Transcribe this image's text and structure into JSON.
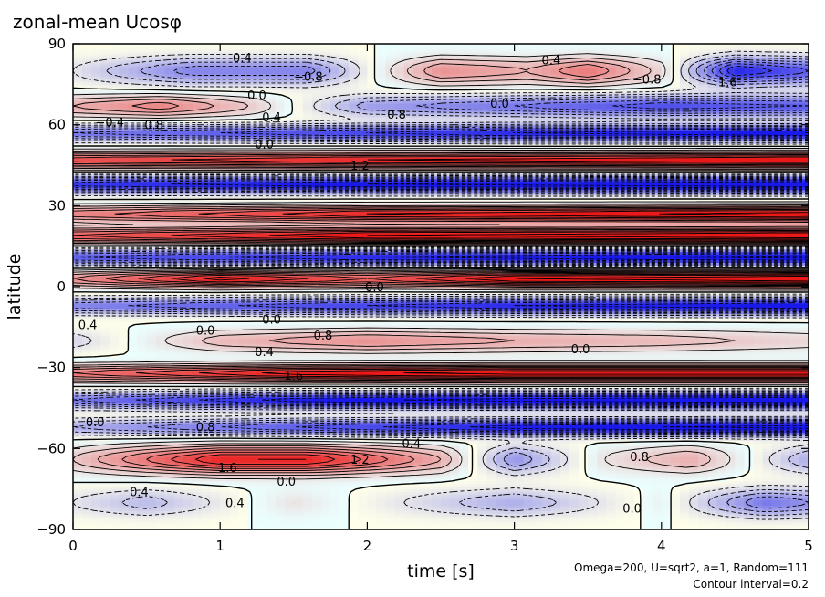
{
  "chart_data": {
    "type": "heatmap",
    "title": "zonal-mean Ucosφ",
    "xlabel": "time [s]",
    "ylabel": "latitude",
    "xlim": [
      0,
      5
    ],
    "ylim": [
      -90,
      90
    ],
    "x_ticks": [
      "0",
      "1",
      "2",
      "3",
      "4",
      "5"
    ],
    "y_ticks": [
      "−90",
      "−60",
      "−30",
      "0",
      "30",
      "60",
      "90"
    ],
    "annotation": "Omega=200, U=sqrt2, a=1, Random=111",
    "contour_interval_text": "Contour interval=0.2",
    "contour_interval": 0.2,
    "colors": {
      "positive": "#e81c1c",
      "negative": "#1c1ce8",
      "zero": "#ffffff",
      "contour": "#000000"
    },
    "grid": false,
    "contour_labels": [
      {
        "text": "0.4",
        "t": 1.15,
        "lat": 85
      },
      {
        "text": "−0.8",
        "t": 1.6,
        "lat": 78
      },
      {
        "text": "0.0",
        "t": 1.25,
        "lat": 71
      },
      {
        "text": "0.4",
        "t": 3.25,
        "lat": 84
      },
      {
        "text": "0.0",
        "t": 2.9,
        "lat": 68
      },
      {
        "text": "−0.8",
        "t": 3.9,
        "lat": 77
      },
      {
        "text": "0.4",
        "t": 1.35,
        "lat": 63
      },
      {
        "text": "0.8",
        "t": 0.55,
        "lat": 60
      },
      {
        "text": "−0.4",
        "t": 0.25,
        "lat": 61
      },
      {
        "text": "0.8",
        "t": 2.2,
        "lat": 64
      },
      {
        "text": "0.0",
        "t": 1.3,
        "lat": 53
      },
      {
        "text": "1.2",
        "t": 1.95,
        "lat": 45
      },
      {
        "text": "0.0",
        "t": 2.05,
        "lat": 0
      },
      {
        "text": "0.4",
        "t": 0.1,
        "lat": -14
      },
      {
        "text": "0.0",
        "t": 0.9,
        "lat": -16
      },
      {
        "text": "0.0",
        "t": 1.35,
        "lat": -12
      },
      {
        "text": "0.8",
        "t": 1.7,
        "lat": -18
      },
      {
        "text": "0.4",
        "t": 1.3,
        "lat": -24
      },
      {
        "text": "1.6",
        "t": 1.5,
        "lat": -33
      },
      {
        "text": "0.0",
        "t": 3.45,
        "lat": -23
      },
      {
        "text": "0.8",
        "t": 0.9,
        "lat": -52
      },
      {
        "text": "0.0",
        "t": 0.15,
        "lat": -50
      },
      {
        "text": "1.6",
        "t": 1.05,
        "lat": -67
      },
      {
        "text": "1.2",
        "t": 1.95,
        "lat": -64
      },
      {
        "text": "0.4",
        "t": 2.3,
        "lat": -58
      },
      {
        "text": "0.0",
        "t": 1.45,
        "lat": -72
      },
      {
        "text": "0.4",
        "t": 0.45,
        "lat": -76
      },
      {
        "text": "0.4",
        "t": 1.1,
        "lat": -80
      },
      {
        "text": "0.8",
        "t": 3.85,
        "lat": -63
      },
      {
        "text": "0.0",
        "t": 3.8,
        "lat": -82
      },
      {
        "text": "1.6",
        "t": 4.45,
        "lat": 76
      }
    ],
    "field_model": {
      "description": "zonal jets in latitude evolving in time",
      "jets": [
        {
          "lat": 80,
          "width": 5,
          "amp": [
            [
              0,
              -0.2
            ],
            [
              0.8,
              -0.9
            ],
            [
              1.6,
              -0.9
            ],
            [
              2.1,
              0.1
            ],
            [
              2.5,
              0.8
            ],
            [
              3.1,
              0.6
            ],
            [
              3.5,
              1.0
            ],
            [
              4.0,
              0.3
            ],
            [
              4.5,
              -1.6
            ],
            [
              5,
              -1.2
            ]
          ]
        },
        {
          "lat": 67,
          "width": 4,
          "amp": [
            [
              0,
              0.6
            ],
            [
              0.6,
              0.9
            ],
            [
              1.2,
              0.4
            ],
            [
              2.0,
              -0.7
            ],
            [
              3.0,
              -1.0
            ],
            [
              4.0,
              -1.3
            ],
            [
              5,
              -1.2
            ]
          ]
        },
        {
          "lat": 57,
          "width": 3,
          "amp": [
            [
              0,
              -1.0
            ],
            [
              1.5,
              -1.3
            ],
            [
              3.0,
              -1.6
            ],
            [
              5,
              -1.8
            ]
          ]
        },
        {
          "lat": 47,
          "width": 3,
          "amp": [
            [
              0,
              1.3
            ],
            [
              2.0,
              1.6
            ],
            [
              5,
              1.8
            ]
          ]
        },
        {
          "lat": 38,
          "width": 3,
          "amp": [
            [
              0,
              -1.5
            ],
            [
              2.0,
              -1.8
            ],
            [
              5,
              -2.0
            ]
          ]
        },
        {
          "lat": 27,
          "width": 3,
          "amp": [
            [
              0,
              0.9
            ],
            [
              2.0,
              1.6
            ],
            [
              5,
              1.9
            ]
          ]
        },
        {
          "lat": 19,
          "width": 3,
          "amp": [
            [
              0,
              1.2
            ],
            [
              2.0,
              1.8
            ],
            [
              5,
              2.0
            ]
          ]
        },
        {
          "lat": 11,
          "width": 3,
          "amp": [
            [
              0,
              -1.2
            ],
            [
              2.0,
              -1.6
            ],
            [
              5,
              -1.9
            ]
          ]
        },
        {
          "lat": 3,
          "width": 3,
          "amp": [
            [
              0,
              0.8
            ],
            [
              1.0,
              1.7
            ],
            [
              2.0,
              1.2
            ],
            [
              3.0,
              1.8
            ],
            [
              5,
              2.0
            ]
          ]
        },
        {
          "lat": -7,
          "width": 3,
          "amp": [
            [
              0,
              -0.9
            ],
            [
              1.5,
              -1.3
            ],
            [
              3.0,
              -1.6
            ],
            [
              5,
              -1.8
            ]
          ]
        },
        {
          "lat": -20,
          "width": 4,
          "amp": [
            [
              0,
              -0.3
            ],
            [
              1.0,
              0.5
            ],
            [
              2.0,
              0.8
            ],
            [
              3.0,
              0.6
            ],
            [
              4.0,
              0.5
            ],
            [
              5,
              0.3
            ]
          ]
        },
        {
          "lat": -32,
          "width": 3,
          "amp": [
            [
              0,
              1.0
            ],
            [
              1.5,
              1.7
            ],
            [
              3.0,
              1.9
            ],
            [
              5,
              1.9
            ]
          ]
        },
        {
          "lat": -42,
          "width": 3,
          "amp": [
            [
              0,
              -1.0
            ],
            [
              1.5,
              -1.7
            ],
            [
              3.0,
              -1.9
            ],
            [
              5,
              -2.0
            ]
          ]
        },
        {
          "lat": -52,
          "width": 3,
          "amp": [
            [
              0,
              -0.6
            ],
            [
              1.5,
              -1.2
            ],
            [
              3.0,
              -1.7
            ],
            [
              5,
              -1.9
            ]
          ]
        },
        {
          "lat": -64,
          "width": 5,
          "amp": [
            [
              0,
              0.4
            ],
            [
              1.0,
              1.6
            ],
            [
              1.6,
              1.6
            ],
            [
              2.5,
              0.6
            ],
            [
              3.0,
              -0.8
            ],
            [
              3.6,
              0.2
            ],
            [
              4.2,
              0.6
            ],
            [
              5,
              -0.6
            ]
          ]
        },
        {
          "lat": -80,
          "width": 5,
          "amp": [
            [
              0,
              -0.2
            ],
            [
              0.5,
              -0.5
            ],
            [
              1.5,
              0.2
            ],
            [
              3.0,
              -0.6
            ],
            [
              4.0,
              0.1
            ],
            [
              4.7,
              -1.0
            ],
            [
              5,
              -0.8
            ]
          ]
        }
      ]
    }
  }
}
